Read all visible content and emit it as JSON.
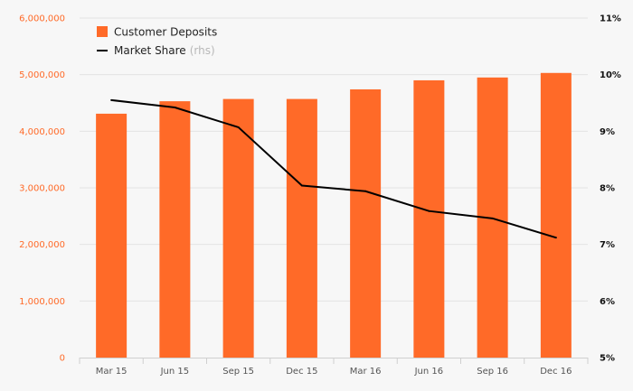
{
  "chart_data": {
    "type": "bar",
    "categories": [
      "Mar 15",
      "Jun 15",
      "Sep 15",
      "Dec 15",
      "Mar 16",
      "Jun 16",
      "Sep 16",
      "Dec 16"
    ],
    "series": [
      {
        "name": "Customer Deposits",
        "type": "bar",
        "axis": "left",
        "color": "#ff6a28",
        "values": [
          4310000,
          4530000,
          4570000,
          4570000,
          4740000,
          4900000,
          4950000,
          5030000
        ]
      },
      {
        "name": "Market Share",
        "name_suffix": "(rhs)",
        "type": "line",
        "axis": "right",
        "color": "#000000",
        "values": [
          9.55,
          9.42,
          9.07,
          8.04,
          7.94,
          7.59,
          7.46,
          7.12
        ]
      }
    ],
    "left_axis": {
      "ylim": [
        0,
        6000000
      ],
      "ticks": [
        0,
        1000000,
        2000000,
        3000000,
        4000000,
        5000000,
        6000000
      ],
      "tick_labels": [
        "0",
        "1,000,000",
        "2,000,000",
        "3,000,000",
        "4,000,000",
        "5,000,000",
        "6,000,000"
      ],
      "color": "#ff6a28"
    },
    "right_axis": {
      "ylim": [
        5,
        11
      ],
      "ticks": [
        5,
        6,
        7,
        8,
        9,
        10,
        11
      ],
      "tick_labels": [
        "5%",
        "6%",
        "7%",
        "8%",
        "9%",
        "10%",
        "11%"
      ],
      "color": "#111111"
    },
    "grid": true,
    "legend": {
      "position": "top-left",
      "entries": [
        {
          "label": "Customer Deposits",
          "suffix": ""
        },
        {
          "label": "Market Share",
          "suffix": "(rhs)"
        }
      ]
    },
    "title": "",
    "xlabel": "",
    "ylabel": ""
  }
}
